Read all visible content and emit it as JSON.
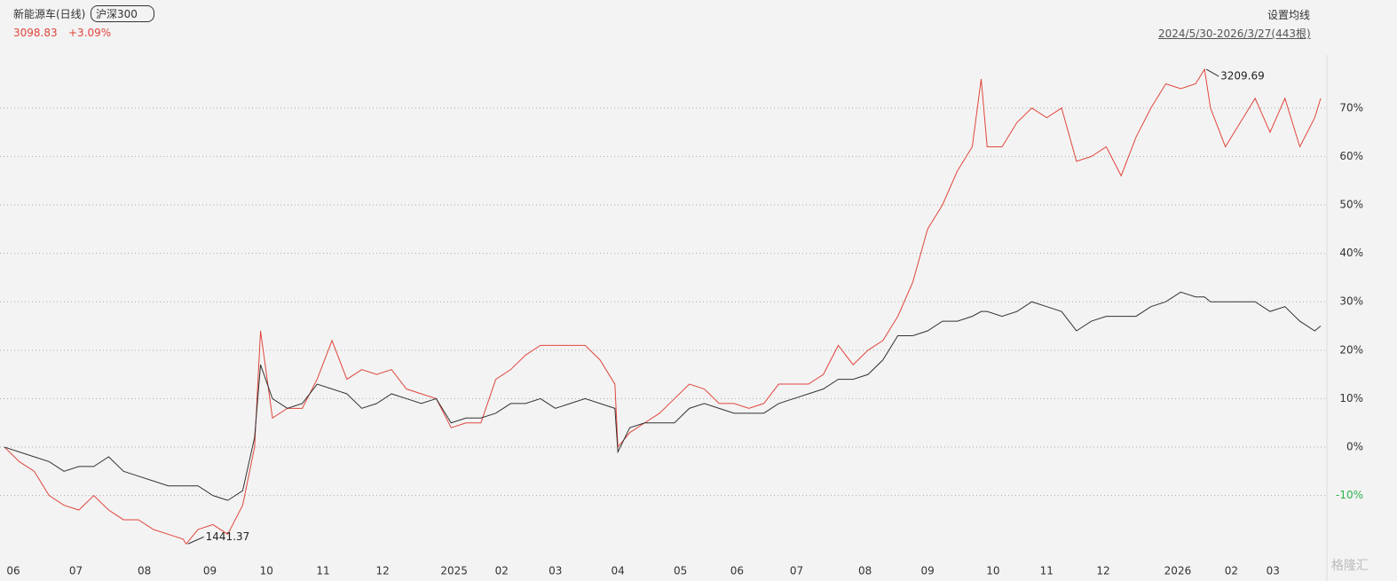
{
  "header": {
    "name": "新能源车(日线)",
    "compare": "沪深300",
    "price": "3098.83",
    "change": "+3.09%",
    "ma_setting": "设置均线",
    "range": "2024/5/30-2026/3/27(443根)"
  },
  "watermark": "格隆汇",
  "chart_data": {
    "type": "line",
    "x": [
      0,
      5,
      10,
      15,
      20,
      25,
      30,
      35,
      40,
      45,
      50,
      55,
      60,
      61,
      65,
      70,
      75,
      80,
      84,
      86,
      90,
      95,
      100,
      105,
      110,
      115,
      120,
      125,
      130,
      135,
      140,
      145,
      150,
      155,
      160,
      165,
      170,
      175,
      180,
      185,
      190,
      195,
      200,
      205,
      206,
      210,
      215,
      220,
      225,
      230,
      235,
      240,
      245,
      250,
      255,
      260,
      265,
      270,
      275,
      280,
      285,
      290,
      295,
      300,
      305,
      310,
      315,
      320,
      325,
      328,
      330,
      335,
      340,
      345,
      350,
      355,
      360,
      365,
      370,
      375,
      380,
      385,
      390,
      395,
      400,
      403,
      405,
      410,
      415,
      420,
      425,
      430,
      435,
      440,
      442
    ],
    "series": [
      {
        "name": "新能源车",
        "color": "#e0463c",
        "values": [
          0,
          -3,
          -5,
          -10,
          -12,
          -13,
          -10,
          -13,
          -15,
          -15,
          -17,
          -18,
          -19,
          -20,
          -17,
          -16,
          -18,
          -12,
          0,
          24,
          6,
          8,
          8,
          14,
          22,
          14,
          16,
          15,
          16,
          12,
          11,
          10,
          4,
          5,
          5,
          14,
          16,
          19,
          21,
          21,
          21,
          21,
          18,
          13,
          0,
          3,
          5,
          7,
          10,
          13,
          12,
          9,
          9,
          8,
          9,
          13,
          13,
          13,
          15,
          21,
          17,
          20,
          22,
          27,
          34,
          45,
          50,
          57,
          62,
          76,
          62,
          62,
          67,
          70,
          68,
          70,
          59,
          60,
          62,
          56,
          64,
          70,
          75,
          74,
          75,
          78,
          70,
          62,
          67,
          72,
          65,
          72,
          62,
          68,
          72
        ]
      },
      {
        "name": "沪深300",
        "color": "#333333",
        "values": [
          0,
          -1,
          -2,
          -3,
          -5,
          -4,
          -4,
          -2,
          -5,
          -6,
          -7,
          -8,
          -8,
          -8,
          -8,
          -10,
          -11,
          -9,
          2,
          17,
          10,
          8,
          9,
          13,
          12,
          11,
          8,
          9,
          11,
          10,
          9,
          10,
          5,
          6,
          6,
          7,
          9,
          9,
          10,
          8,
          9,
          10,
          9,
          8,
          -1,
          4,
          5,
          5,
          5,
          8,
          9,
          8,
          7,
          7,
          7,
          9,
          10,
          11,
          12,
          14,
          14,
          15,
          18,
          23,
          23,
          24,
          26,
          26,
          27,
          28,
          28,
          27,
          28,
          30,
          29,
          28,
          24,
          26,
          27,
          27,
          27,
          29,
          30,
          32,
          31,
          31,
          30,
          30,
          30,
          30,
          28,
          29,
          26,
          24,
          25
        ]
      }
    ],
    "annotations": [
      "1441.37",
      "3209.69"
    ],
    "xlim": [
      0,
      442
    ],
    "xticks": [
      {
        "value": 3,
        "label": "06"
      },
      {
        "value": 24,
        "label": "07"
      },
      {
        "value": 47,
        "label": "08"
      },
      {
        "value": 69,
        "label": "09"
      },
      {
        "value": 88,
        "label": "10"
      },
      {
        "value": 107,
        "label": "11"
      },
      {
        "value": 127,
        "label": "12"
      },
      {
        "value": 151,
        "label": "2025"
      },
      {
        "value": 167,
        "label": "02"
      },
      {
        "value": 185,
        "label": "03"
      },
      {
        "value": 206,
        "label": "04"
      },
      {
        "value": 227,
        "label": "05"
      },
      {
        "value": 246,
        "label": "06"
      },
      {
        "value": 266,
        "label": "07"
      },
      {
        "value": 289,
        "label": "08"
      },
      {
        "value": 310,
        "label": "09"
      },
      {
        "value": 332,
        "label": "10"
      },
      {
        "value": 350,
        "label": "11"
      },
      {
        "value": 369,
        "label": "12"
      },
      {
        "value": 394,
        "label": "2026"
      },
      {
        "value": 412,
        "label": "02"
      },
      {
        "value": 426,
        "label": "03"
      }
    ],
    "ylim": [
      -22.7,
      80.4
    ],
    "yticks": [
      {
        "value": -10,
        "label": "-10%"
      },
      {
        "value": 0,
        "label": "0%"
      },
      {
        "value": 10,
        "label": "10%"
      },
      {
        "value": 20,
        "label": "20%"
      },
      {
        "value": 30,
        "label": "30%"
      },
      {
        "value": 40,
        "label": "40%"
      },
      {
        "value": 50,
        "label": "50%"
      },
      {
        "value": 60,
        "label": "60%"
      },
      {
        "value": 70,
        "label": "70%"
      }
    ],
    "grid": true
  }
}
